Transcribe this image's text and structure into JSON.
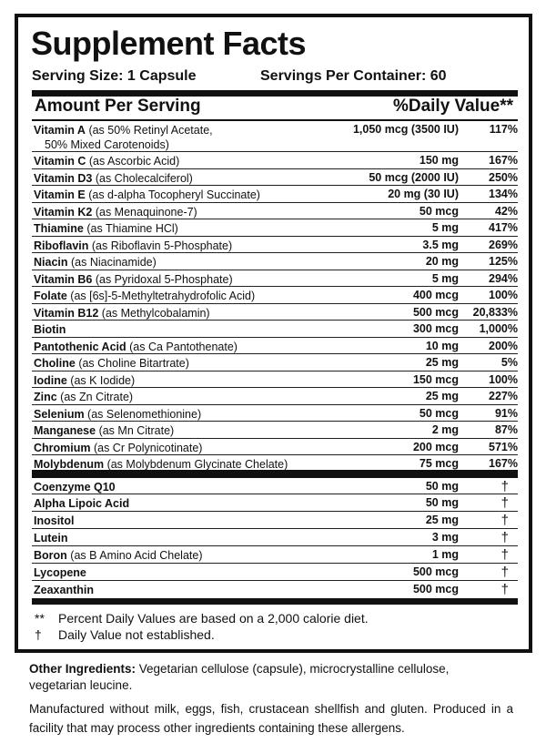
{
  "header": {
    "title": "Supplement Facts",
    "serving_size": "Serving Size: 1 Capsule",
    "servings_per_container": "Servings Per Container: 60",
    "amount_per_serving": "Amount Per Serving",
    "daily_value": "%Daily Value**"
  },
  "nutrients": [
    {
      "name": "Vitamin A",
      "source": " (as 50% Retinyl Acetate,",
      "source2": "50% Mixed Carotenoids)",
      "amount": "1,050 mcg (3500 IU)",
      "dv": "117%"
    },
    {
      "name": "Vitamin C",
      "source": " (as Ascorbic Acid)",
      "amount": "150 mg",
      "dv": "167%"
    },
    {
      "name": "Vitamin D3",
      "source": " (as Cholecalciferol)",
      "amount": "50 mcg (2000 IU)",
      "dv": "250%"
    },
    {
      "name": "Vitamin E",
      "source": " (as d-alpha Tocopheryl Succinate)",
      "amount": "20 mg (30 IU)",
      "dv": "134%"
    },
    {
      "name": "Vitamin K2",
      "source": " (as Menaquinone-7)",
      "amount": "50 mcg",
      "dv": "42%"
    },
    {
      "name": "Thiamine",
      "source": " (as Thiamine HCl)",
      "amount": "5 mg",
      "dv": "417%"
    },
    {
      "name": "Riboflavin",
      "source": " (as Riboflavin 5-Phosphate)",
      "amount": "3.5 mg",
      "dv": "269%"
    },
    {
      "name": "Niacin",
      "source": " (as Niacinamide)",
      "amount": "20 mg",
      "dv": "125%"
    },
    {
      "name": "Vitamin B6",
      "source": " (as Pyridoxal 5-Phosphate)",
      "amount": "5 mg",
      "dv": "294%"
    },
    {
      "name": "Folate",
      "source": " (as [6s]-5-Methyltetrahydrofolic Acid)",
      "amount": "400 mcg",
      "dv": "100%"
    },
    {
      "name": "Vitamin B12",
      "source": " (as Methylcobalamin)",
      "amount": "500 mcg",
      "dv": "20,833%"
    },
    {
      "name": "Biotin",
      "source": "",
      "amount": "300 mcg",
      "dv": "1,000%"
    },
    {
      "name": "Pantothenic Acid",
      "source": " (as Ca Pantothenate)",
      "amount": "10 mg",
      "dv": "200%"
    },
    {
      "name": "Choline",
      "source": " (as Choline Bitartrate)",
      "amount": "25 mg",
      "dv": "5%"
    },
    {
      "name": "Iodine",
      "source": " (as K Iodide)",
      "amount": "150 mcg",
      "dv": "100%"
    },
    {
      "name": "Zinc",
      "source": " (as Zn Citrate)",
      "amount": "25 mg",
      "dv": "227%"
    },
    {
      "name": "Selenium",
      "source": " (as Selenomethionine)",
      "amount": "50 mcg",
      "dv": "91%"
    },
    {
      "name": "Manganese",
      "source": " (as Mn Citrate)",
      "amount": "2 mg",
      "dv": "87%"
    },
    {
      "name": "Chromium",
      "source": " (as Cr Polynicotinate)",
      "amount": "200 mcg",
      "dv": "571%"
    },
    {
      "name": "Molybdenum",
      "source": " (as Molybdenum Glycinate Chelate)",
      "amount": "75 mcg",
      "dv": "167%"
    }
  ],
  "other_nutrients": [
    {
      "name": "Coenzyme Q10",
      "source": "",
      "amount": "50 mg",
      "dv": "†"
    },
    {
      "name": "Alpha Lipoic Acid",
      "source": "",
      "amount": "50 mg",
      "dv": "†"
    },
    {
      "name": "Inositol",
      "source": "",
      "amount": "25 mg",
      "dv": "†"
    },
    {
      "name": "Lutein",
      "source": "",
      "amount": "3 mg",
      "dv": "†"
    },
    {
      "name": "Boron",
      "source": " (as B Amino Acid Chelate)",
      "amount": "1 mg",
      "dv": "†"
    },
    {
      "name": "Lycopene",
      "source": "",
      "amount": "500 mcg",
      "dv": "†"
    },
    {
      "name": "Zeaxanthin",
      "source": "",
      "amount": "500 mcg",
      "dv": "†"
    }
  ],
  "footnotes": [
    {
      "mark": "**",
      "text": "Percent Daily Values are based on a 2,000 calorie diet."
    },
    {
      "mark": "†",
      "text": "Daily Value not established."
    }
  ],
  "other_ingredients": {
    "label": "Other Ingredients:",
    "text": " Vegetarian cellulose (capsule), microcrystalline cellulose, vegetarian leucine."
  },
  "allergen_statement": "Manufactured without milk, eggs, fish, crustacean shellfish and gluten. Produced in a facility that may process other ingredients containing these allergens."
}
